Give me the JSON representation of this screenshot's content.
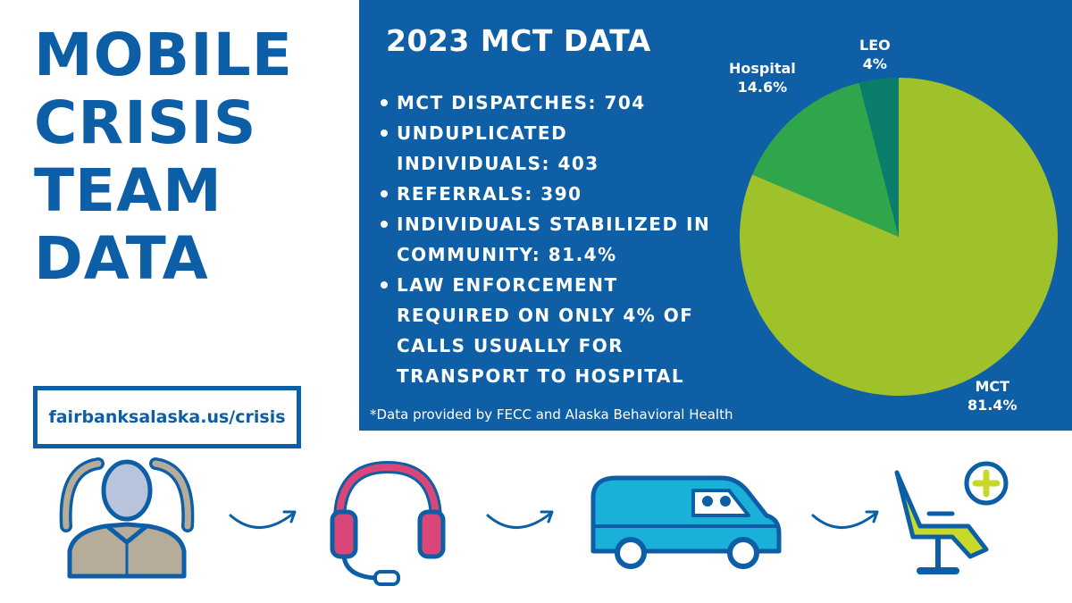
{
  "main_title": [
    "MOBILE",
    "CRISIS",
    "TEAM",
    "DATA"
  ],
  "url": "fairbanksalaska.us/crisis",
  "panel": {
    "title": "2023 MCT DATA",
    "stats": [
      "MCT DISPATCHES: 704",
      "UNDUPLICATED INDIVIDUALS: 403",
      "REFERRALS: 390",
      "INDIVIDUALS STABILIZED IN COMMUNITY: 81.4%",
      "LAW ENFORCEMENT REQUIRED ON ONLY 4% OF CALLS USUALLY FOR TRANSPORT TO HOSPITAL"
    ],
    "footnote": "*Data provided by FECC and Alaska Behavioral Health"
  },
  "chart_data": {
    "type": "pie",
    "title": "",
    "slices": [
      {
        "name": "MCT",
        "value": 81.4,
        "label": "81.4%",
        "color": "#9fc22a"
      },
      {
        "name": "Hospital",
        "value": 14.6,
        "label": "14.6%",
        "color": "#2fa64c"
      },
      {
        "name": "LEO",
        "value": 4,
        "label": "4%",
        "color": "#0b7d6b"
      }
    ]
  },
  "flow": {
    "icons": [
      "stressed-person-icon",
      "headset-icon",
      "van-icon",
      "medical-chair-icon"
    ],
    "colors": {
      "blue": "#0c5ea6",
      "person_fill": "#b5ac99",
      "face_fill": "#b8c4dc",
      "headset_pink": "#d94677",
      "van_cyan": "#1ab0d8",
      "chair_green": "#c7da2c"
    }
  }
}
